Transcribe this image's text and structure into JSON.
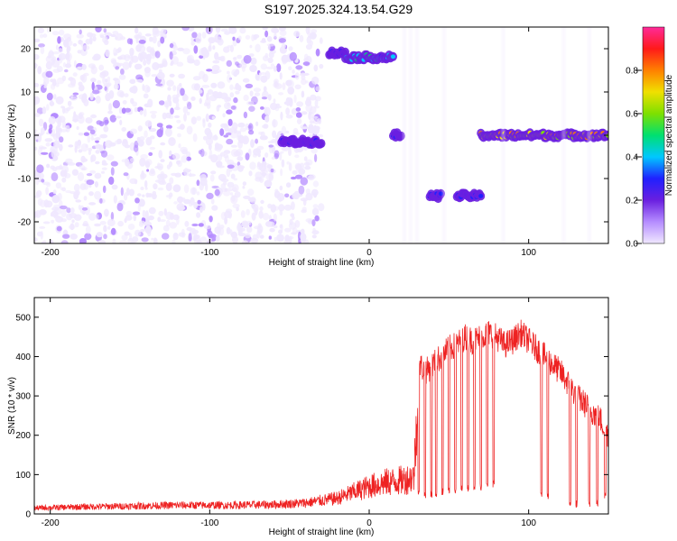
{
  "title": "S197.2025.324.13.54.G29",
  "chart_data": [
    {
      "type": "heatmap",
      "xlabel": "Height of straight line (km)",
      "ylabel": "Frequency (Hz)",
      "xlim": [
        -210,
        150
      ],
      "ylim": [
        -25,
        25
      ],
      "xticks": [
        -200,
        -100,
        0,
        100
      ],
      "yticks": [
        -20,
        -10,
        0,
        10,
        20
      ],
      "colorbar": {
        "label": "Normalized spectral amplitude",
        "range": [
          0.0,
          1.0
        ],
        "ticks": [
          0.0,
          0.2,
          0.4,
          0.6,
          0.8
        ],
        "colors": [
          "#f0e8ff",
          "#b58cff",
          "#6a1fe0",
          "#2020ff",
          "#00c8ff",
          "#00e070",
          "#7ee000",
          "#f0e000",
          "#ff8000",
          "#ff1a1a",
          "#ff2a9a"
        ]
      },
      "features": [
        {
          "x": [
            -210,
            -30
          ],
          "y": [
            -25,
            25
          ],
          "amplitude": 0.1
        },
        {
          "x": [
            -55,
            -30
          ],
          "y": -1.5,
          "amplitude": 0.3
        },
        {
          "x": [
            -25,
            -15
          ],
          "y": 19,
          "amplitude": 0.3
        },
        {
          "x": [
            -15,
            15
          ],
          "y": 18,
          "amplitude": 0.5
        },
        {
          "x": [
            15,
            20
          ],
          "y": 0,
          "amplitude": 0.3
        },
        {
          "x": [
            38,
            45
          ],
          "y": -14,
          "amplitude": 0.35
        },
        {
          "x": [
            55,
            70
          ],
          "y": -14,
          "amplitude": 0.35
        },
        {
          "x": [
            70,
            150
          ],
          "y": 0,
          "amplitude": 0.8
        }
      ]
    },
    {
      "type": "line",
      "xlabel": "Height of straight line (km)",
      "ylabel": "SNR (10 * v/v)",
      "xlim": [
        -210,
        150
      ],
      "ylim": [
        0,
        550
      ],
      "xticks": [
        -200,
        -100,
        0,
        100
      ],
      "yticks": [
        0,
        100,
        200,
        300,
        400,
        500
      ],
      "series": [
        {
          "color": "#ee2222",
          "x": [
            -210,
            -180,
            -150,
            -120,
            -90,
            -60,
            -40,
            -20,
            -10,
            0,
            10,
            20,
            25,
            28,
            30,
            32,
            35,
            40,
            45,
            50,
            55,
            60,
            65,
            70,
            75,
            80,
            85,
            90,
            95,
            100,
            105,
            110,
            115,
            120,
            125,
            130,
            135,
            140,
            145,
            150
          ],
          "values": [
            15,
            18,
            20,
            22,
            22,
            24,
            28,
            40,
            55,
            70,
            80,
            85,
            90,
            95,
            250,
            380,
            360,
            380,
            400,
            420,
            430,
            450,
            440,
            450,
            460,
            450,
            430,
            440,
            460,
            440,
            420,
            400,
            380,
            360,
            330,
            300,
            280,
            260,
            240,
            200
          ],
          "baseline": [
            12,
            12,
            12,
            12,
            12,
            12,
            14,
            20,
            30,
            35,
            40,
            45,
            50,
            55,
            60,
            55,
            50,
            50,
            55,
            60,
            60,
            65,
            70,
            70,
            75,
            80,
            80,
            85,
            90,
            90,
            60,
            50,
            40,
            30,
            30,
            25,
            25,
            25,
            30,
            60
          ],
          "dropouts": [
            31,
            35,
            39,
            42,
            46,
            50,
            54,
            58,
            62,
            66,
            70,
            74,
            78,
            108,
            112,
            126,
            130,
            138,
            143,
            148
          ]
        }
      ]
    }
  ]
}
